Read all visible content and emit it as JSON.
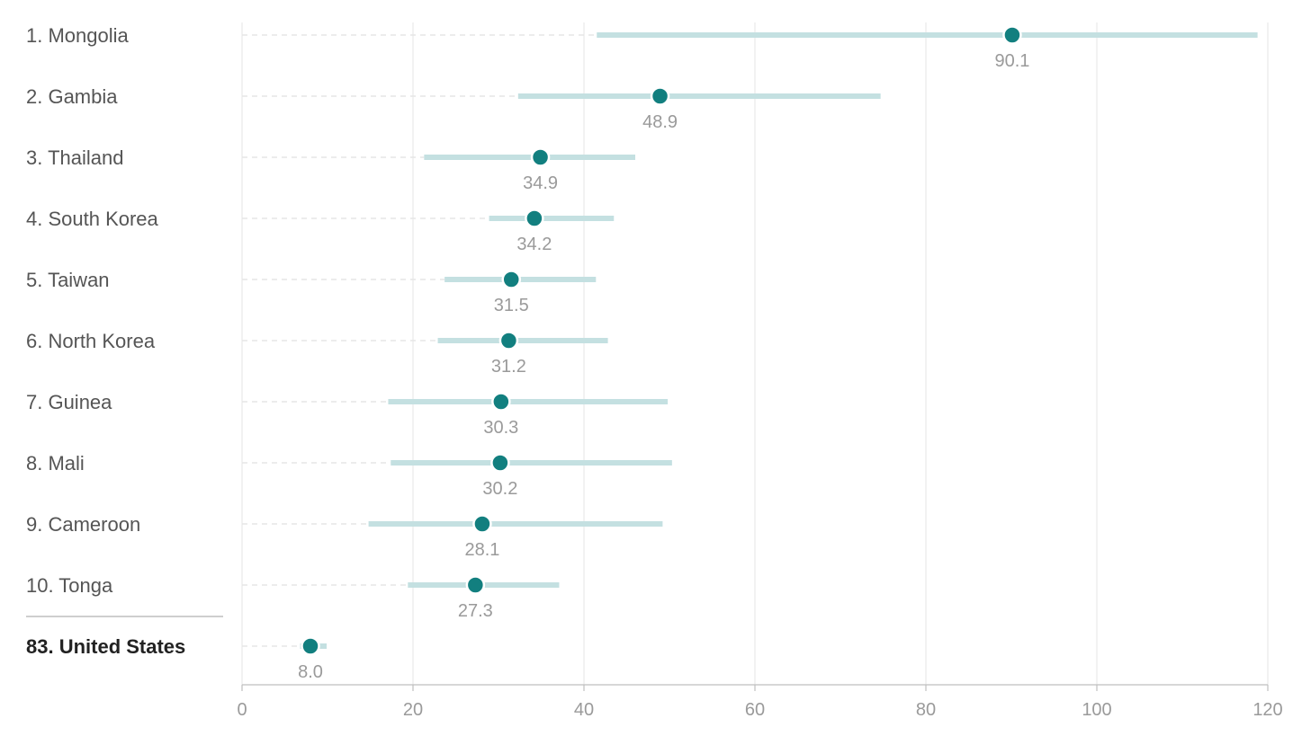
{
  "colors": {
    "dot": "#127f7f",
    "interval": "#c4e0e1"
  },
  "chart_data": {
    "type": "scatter",
    "xlim": [
      0,
      120
    ],
    "x_ticks": [
      0,
      20,
      40,
      60,
      80,
      100,
      120
    ],
    "x_tick_labels": [
      "0",
      "20",
      "40",
      "60",
      "80",
      "100",
      "120"
    ],
    "grid": true,
    "series": [
      {
        "categories": [
          "1. Mongolia",
          "2. Gambia",
          "3. Thailand",
          "4. South Korea",
          "5. Taiwan",
          "6. North Korea",
          "7. Guinea",
          "8. Mali",
          "9. Cameroon",
          "10. Tonga",
          "83. United States"
        ],
        "values": [
          90.1,
          48.9,
          34.9,
          34.2,
          31.5,
          31.2,
          30.3,
          30.2,
          28.1,
          27.3,
          8.0
        ],
        "value_labels": [
          "90.1",
          "48.9",
          "34.9",
          "34.2",
          "31.5",
          "31.2",
          "30.3",
          "30.2",
          "28.1",
          "27.3",
          "8.0"
        ],
        "lower": [
          41.5,
          32.3,
          21.3,
          28.9,
          23.7,
          22.9,
          17.1,
          17.4,
          14.8,
          19.4,
          6.8
        ],
        "upper": [
          118.8,
          74.7,
          46.0,
          43.5,
          41.4,
          42.8,
          49.8,
          50.3,
          49.2,
          37.1,
          9.9
        ],
        "highlight": [
          false,
          false,
          false,
          false,
          false,
          false,
          false,
          false,
          false,
          false,
          true
        ]
      }
    ]
  }
}
